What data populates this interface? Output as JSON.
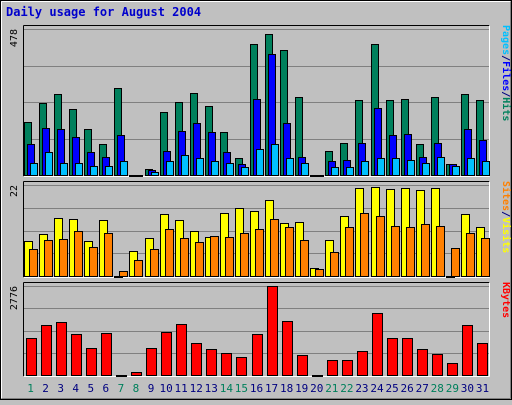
{
  "colors": {
    "background": "#C0C0C0",
    "title": "#0000CC",
    "hits": "#00805C",
    "files": "#0000FF",
    "pages": "#00C0FF",
    "visits": "#FFFF00",
    "sites": "#FF8000",
    "kbytes": "#FF0000",
    "weekday_label": "#000080",
    "weekend_label": "#00805C"
  },
  "chart_data": {
    "type": "bar",
    "title": "Daily usage for August 2004",
    "categories": [
      "1",
      "2",
      "3",
      "4",
      "5",
      "6",
      "7",
      "8",
      "9",
      "10",
      "11",
      "12",
      "13",
      "14",
      "15",
      "16",
      "17",
      "18",
      "19",
      "20",
      "21",
      "22",
      "23",
      "24",
      "25",
      "26",
      "27",
      "28",
      "29",
      "30",
      "31"
    ],
    "weekend_days": [
      "1",
      "7",
      "8",
      "14",
      "15",
      "21",
      "22",
      "28",
      "29"
    ],
    "panels": [
      {
        "name": "hits-files-pages",
        "max_label": "478",
        "ylim": [
          0,
          478
        ],
        "legend": [
          {
            "text": "Hits",
            "color_key": "hits"
          },
          {
            "text": "/",
            "color_key": "weekday_label"
          },
          {
            "text": "Files",
            "color_key": "files"
          },
          {
            "text": "/",
            "color_key": "weekday_label"
          },
          {
            "text": "Pages",
            "color_key": "pages"
          }
        ],
        "series": [
          {
            "name": "Hits",
            "color_key": "hits",
            "values": [
              175,
              235,
              265,
              215,
              150,
              100,
              285,
              0,
              20,
              205,
              240,
              270,
              225,
              140,
              55,
              430,
              460,
              410,
              255,
              0,
              80,
              105,
              245,
              430,
              245,
              250,
              100,
              255,
              35,
              265,
              245
            ]
          },
          {
            "name": "Files",
            "color_key": "files",
            "values": [
              100,
              155,
              150,
              125,
              75,
              60,
              130,
              0,
              15,
              80,
              145,
              170,
              140,
              75,
              35,
              250,
              395,
              170,
              60,
              0,
              45,
              50,
              105,
              220,
              130,
              135,
              60,
              105,
              35,
              150,
              115
            ]
          },
          {
            "name": "Pages",
            "color_key": "pages",
            "values": [
              40,
              75,
              40,
              40,
              30,
              30,
              45,
              0,
              10,
              45,
              65,
              55,
              45,
              40,
              25,
              85,
              100,
              55,
              40,
              0,
              25,
              25,
              45,
              55,
              55,
              50,
              40,
              60,
              30,
              55,
              45
            ]
          }
        ]
      },
      {
        "name": "visits-sites",
        "max_label": "22",
        "ylim": [
          0,
          22
        ],
        "legend": [
          {
            "text": "Visits",
            "color_key": "visits"
          },
          {
            "text": "/",
            "color_key": "weekday_label"
          },
          {
            "text": "Sites",
            "color_key": "sites"
          }
        ],
        "series": [
          {
            "name": "Visits",
            "color_key": "visits",
            "values": [
              8.4,
              10.2,
              14.1,
              13.7,
              8.5,
              13.5,
              0,
              6,
              9.3,
              15,
              13.6,
              10.8,
              9.5,
              15.2,
              16.4,
              15.8,
              18.4,
              12.8,
              13.1,
              2,
              8.7,
              14.6,
              21.2,
              21.5,
              21.1,
              21.2,
              20.9,
              21.3,
              0,
              15.1,
              11.9
            ]
          },
          {
            "name": "Sites",
            "color_key": "sites",
            "values": [
              6.6,
              8.7,
              8.9,
              10.8,
              6.9,
              10.4,
              1.1,
              3.9,
              6.6,
              11.3,
              9.2,
              8.2,
              9.6,
              9.5,
              10.3,
              11.4,
              13.7,
              11.9,
              8.8,
              1.7,
              5.9,
              11.9,
              15.3,
              14.4,
              12.1,
              11.9,
              12.6,
              12.2,
              6.7,
              10.3,
              9.1
            ]
          }
        ]
      },
      {
        "name": "kbytes",
        "max_label": "2776",
        "ylim": [
          0,
          2776
        ],
        "legend": [
          {
            "text": "KBytes",
            "color_key": "kbytes"
          }
        ],
        "series": [
          {
            "name": "KBytes",
            "color_key": "kbytes",
            "values": [
              1165,
              1560,
              1655,
              1285,
              840,
              1315,
              0,
              90,
              850,
              1330,
              1605,
              1010,
              820,
              700,
              555,
              1280,
              2776,
              1670,
              630,
              0,
              455,
              455,
              760,
              1940,
              1165,
              1165,
              820,
              650,
              385,
              1550,
              995
            ]
          }
        ]
      }
    ]
  }
}
